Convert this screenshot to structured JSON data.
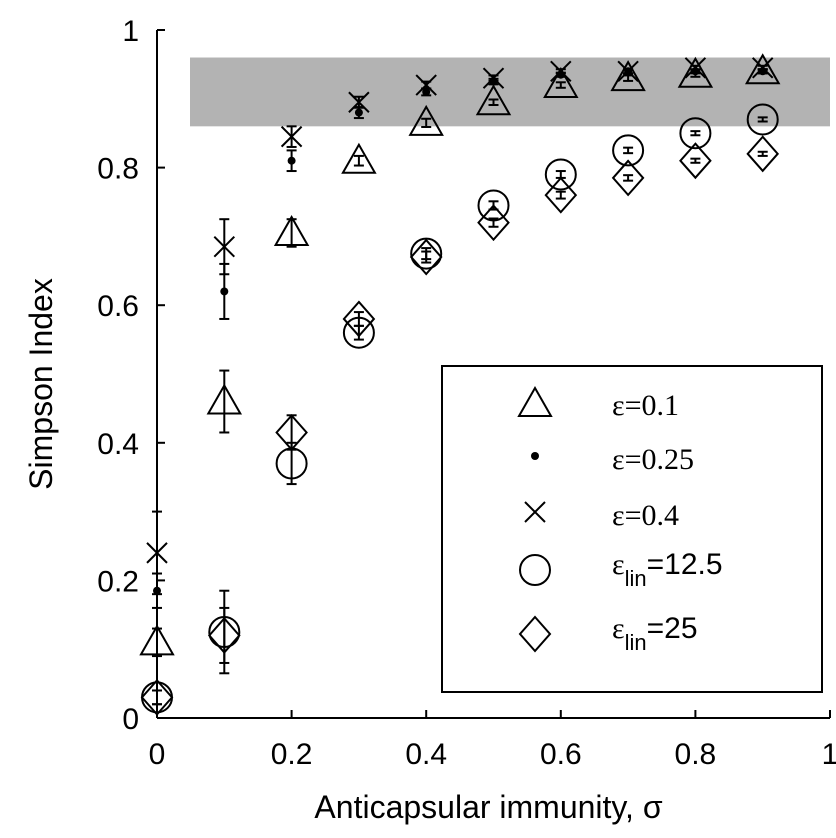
{
  "chart_data": {
    "type": "scatter",
    "xlabel": "Anticapsular immunity, σ",
    "ylabel": "Simpson Index",
    "xlim": [
      0,
      1
    ],
    "ylim": [
      0,
      1
    ],
    "x_ticks": [
      "0",
      "0.2",
      "0.4",
      "0.6",
      "0.8",
      "1"
    ],
    "y_ticks": [
      "0",
      "0.2",
      "0.4",
      "0.6",
      "0.8",
      "1"
    ],
    "grid": false,
    "legend_position": "lower-right",
    "shaded_band": {
      "y_low": 0.86,
      "y_high": 0.96,
      "color": "#b3b3b3"
    },
    "series": [
      {
        "name": "ε=0.1",
        "legend_main": "ε=0.1",
        "marker": "triangle",
        "x": [
          0,
          0.1,
          0.2,
          0.3,
          0.4,
          0.5,
          0.6,
          0.7,
          0.8,
          0.9
        ],
        "y": [
          0.11,
          0.46,
          0.705,
          0.81,
          0.865,
          0.895,
          0.92,
          0.93,
          0.935,
          0.94
        ],
        "err": [
          0.02,
          0.045,
          0.02,
          0.007,
          0.006,
          0.004,
          0.004,
          0.004,
          0.003,
          0.003
        ]
      },
      {
        "name": "ε=0.25",
        "legend_main": "ε=0.25",
        "marker": "dot",
        "x": [
          0,
          0.1,
          0.2,
          0.3,
          0.4,
          0.5,
          0.6,
          0.7,
          0.8,
          0.9
        ],
        "y": [
          0.185,
          0.62,
          0.81,
          0.88,
          0.91,
          0.925,
          0.935,
          0.94,
          0.94,
          0.94
        ],
        "err": [
          0.025,
          0.04,
          0.015,
          0.008,
          0.005,
          0.004,
          0.003,
          0.003,
          0.003,
          0.003
        ]
      },
      {
        "name": "ε=0.4",
        "legend_main": "ε=0.4",
        "marker": "cross",
        "x": [
          0,
          0.1,
          0.2,
          0.3,
          0.4,
          0.5,
          0.6,
          0.7,
          0.8,
          0.9
        ],
        "y": [
          0.24,
          0.685,
          0.845,
          0.895,
          0.92,
          0.93,
          0.94,
          0.94,
          0.945,
          0.945
        ],
        "err": [
          0.06,
          0.04,
          0.015,
          0.008,
          0.005,
          0.004,
          0.003,
          0.003,
          0.003,
          0.003
        ]
      },
      {
        "name": "εlin=12.5",
        "legend_main": "ε",
        "legend_sub": "lin",
        "legend_tail": "=12.5",
        "marker": "circle",
        "x": [
          0,
          0.1,
          0.2,
          0.3,
          0.4,
          0.5,
          0.6,
          0.7,
          0.8,
          0.9
        ],
        "y": [
          0.03,
          0.125,
          0.37,
          0.56,
          0.675,
          0.745,
          0.79,
          0.825,
          0.85,
          0.87
        ],
        "err": [
          0.01,
          0.06,
          0.03,
          0.01,
          0.008,
          0.006,
          0.005,
          0.004,
          0.003,
          0.003
        ]
      },
      {
        "name": "εlin=25",
        "legend_main": "ε",
        "legend_sub": "lin",
        "legend_tail": "=25",
        "marker": "diamond",
        "x": [
          0,
          0.1,
          0.2,
          0.3,
          0.4,
          0.5,
          0.6,
          0.7,
          0.8,
          0.9
        ],
        "y": [
          0.03,
          0.12,
          0.415,
          0.58,
          0.67,
          0.72,
          0.76,
          0.785,
          0.81,
          0.82
        ],
        "err": [
          0.01,
          0.04,
          0.025,
          0.01,
          0.008,
          0.006,
          0.005,
          0.004,
          0.003,
          0.003
        ]
      }
    ]
  }
}
